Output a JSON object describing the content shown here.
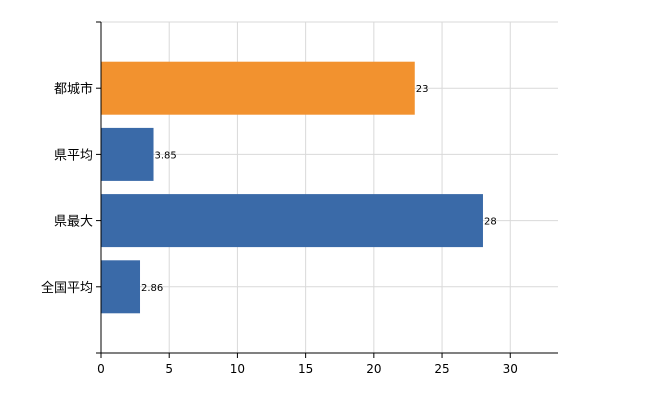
{
  "chart_data": {
    "type": "bar",
    "orientation": "horizontal",
    "categories": [
      "都城市",
      "県平均",
      "県最大",
      "全国平均"
    ],
    "values": [
      23,
      3.85,
      28,
      2.86
    ],
    "value_labels": [
      "23",
      "3.85",
      "28",
      "2.86"
    ],
    "bar_colors": [
      "#f2922f",
      "#3a6aa8",
      "#3a6aa8",
      "#3a6aa8"
    ],
    "xlim": [
      0,
      33.5
    ],
    "xticks": [
      0,
      5,
      10,
      15,
      20,
      25,
      30
    ],
    "grid": true,
    "legend": "none"
  }
}
